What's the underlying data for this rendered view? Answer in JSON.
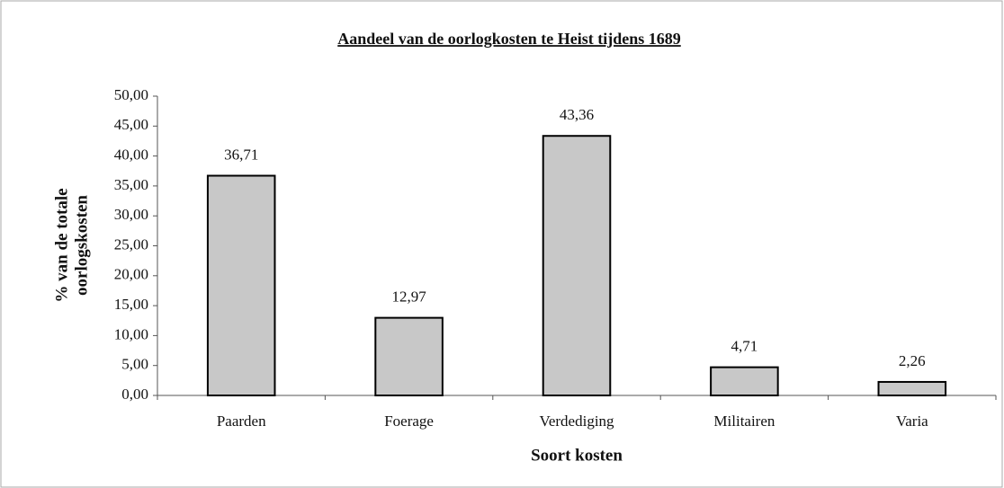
{
  "chart_data": {
    "type": "bar",
    "title": "Aandeel van de oorlogkosten te Heist tijdens 1689",
    "xlabel": "Soort kosten",
    "ylabel": [
      "% van de totale",
      "oorlogskosten"
    ],
    "categories": [
      "Paarden",
      "Foerage",
      "Verdediging",
      "Militairen",
      "Varia"
    ],
    "values": [
      36.71,
      12.97,
      43.36,
      4.71,
      2.26
    ],
    "value_labels": [
      "36,71",
      "12,97",
      "43,36",
      "4,71",
      "2,26"
    ],
    "color": "#c8c8c8",
    "ylim": [
      0,
      50
    ],
    "yticks": [
      {
        "value": 0,
        "label": "0,00"
      },
      {
        "value": 5,
        "label": "5,00"
      },
      {
        "value": 10,
        "label": "10,00"
      },
      {
        "value": 15,
        "label": "15,00"
      },
      {
        "value": 20,
        "label": "20,00"
      },
      {
        "value": 25,
        "label": "25,00"
      },
      {
        "value": 30,
        "label": "30,00"
      },
      {
        "value": 35,
        "label": "35,00"
      },
      {
        "value": 40,
        "label": "40,00"
      },
      {
        "value": 45,
        "label": "45,00"
      },
      {
        "value": 50,
        "label": "50,00"
      }
    ],
    "grid": false
  }
}
